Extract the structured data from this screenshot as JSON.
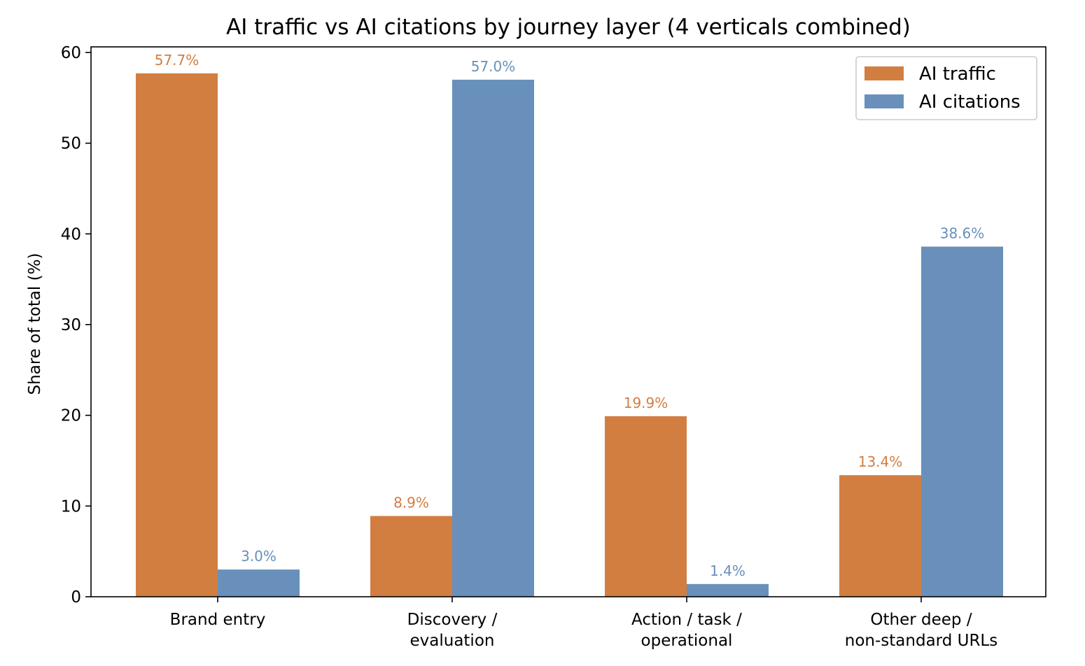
{
  "chart_data": {
    "type": "bar",
    "title": "AI traffic vs AI citations by journey layer (4 verticals combined)",
    "xlabel": "",
    "ylabel": "Share of total (%)",
    "ylim": [
      0,
      60
    ],
    "yticks": [
      0,
      10,
      20,
      30,
      40,
      50,
      60
    ],
    "categories": [
      [
        "Brand entry"
      ],
      [
        "Discovery /",
        "evaluation"
      ],
      [
        "Action / task /",
        "operational"
      ],
      [
        "Other deep /",
        "non-standard URLs"
      ]
    ],
    "series": [
      {
        "name": "AI traffic",
        "color": "#d27e41",
        "values": [
          57.7,
          8.9,
          19.9,
          13.4
        ],
        "labels": [
          "57.7%",
          "8.9%",
          "19.9%",
          "13.4%"
        ]
      },
      {
        "name": "AI citations",
        "color": "#6890bb",
        "values": [
          3.0,
          57.0,
          1.4,
          38.6
        ],
        "labels": [
          "3.0%",
          "57.0%",
          "1.4%",
          "38.6%"
        ]
      }
    ],
    "grid": false,
    "legend_position": "top-right"
  }
}
